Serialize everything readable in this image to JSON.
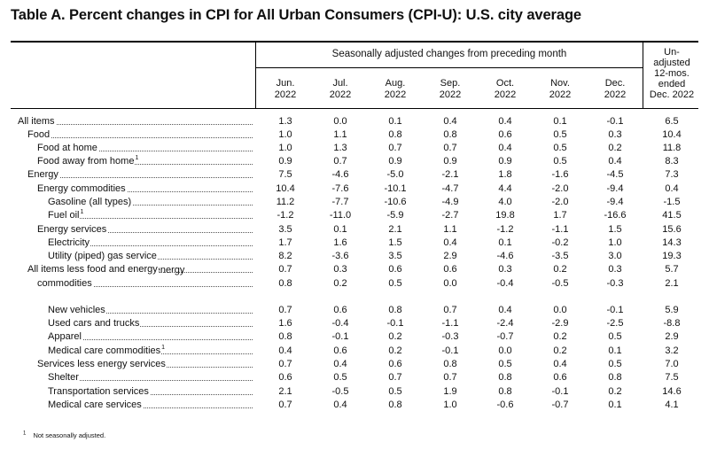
{
  "title": "Table A. Percent changes in CPI for All Urban Consumers (CPI-U): U.S. city average",
  "header": {
    "span_label": "Seasonally adjusted changes from preceding month",
    "months": [
      {
        "m": "Jun.",
        "y": "2022"
      },
      {
        "m": "Jul.",
        "y": "2022"
      },
      {
        "m": "Aug.",
        "y": "2022"
      },
      {
        "m": "Sep.",
        "y": "2022"
      },
      {
        "m": "Oct.",
        "y": "2022"
      },
      {
        "m": "Nov.",
        "y": "2022"
      },
      {
        "m": "Dec.",
        "y": "2022"
      }
    ],
    "unadjusted": [
      "Un-",
      "adjusted",
      "12-mos.",
      "ended",
      "Dec. 2022"
    ]
  },
  "rows": [
    {
      "label": "All items",
      "indent": 0,
      "note": "",
      "values": [
        "1.3",
        "0.0",
        "0.1",
        "0.4",
        "0.4",
        "0.1",
        "-0.1",
        "6.5"
      ]
    },
    {
      "label": "Food",
      "indent": 1,
      "note": "",
      "values": [
        "1.0",
        "1.1",
        "0.8",
        "0.8",
        "0.6",
        "0.5",
        "0.3",
        "10.4"
      ]
    },
    {
      "label": "Food at home",
      "indent": 2,
      "note": "",
      "values": [
        "1.0",
        "1.3",
        "0.7",
        "0.7",
        "0.4",
        "0.5",
        "0.2",
        "11.8"
      ]
    },
    {
      "label": "Food away from home",
      "indent": 2,
      "note": "1",
      "values": [
        "0.9",
        "0.7",
        "0.9",
        "0.9",
        "0.9",
        "0.5",
        "0.4",
        "8.3"
      ]
    },
    {
      "label": "Energy",
      "indent": 1,
      "note": "",
      "values": [
        "7.5",
        "-4.6",
        "-5.0",
        "-2.1",
        "1.8",
        "-1.6",
        "-4.5",
        "7.3"
      ]
    },
    {
      "label": "Energy commodities",
      "indent": 2,
      "note": "",
      "values": [
        "10.4",
        "-7.6",
        "-10.1",
        "-4.7",
        "4.4",
        "-2.0",
        "-9.4",
        "0.4"
      ]
    },
    {
      "label": "Gasoline (all types)",
      "indent": 3,
      "note": "",
      "values": [
        "11.2",
        "-7.7",
        "-10.6",
        "-4.9",
        "4.0",
        "-2.0",
        "-9.4",
        "-1.5"
      ]
    },
    {
      "label": "Fuel oil",
      "indent": 3,
      "note": "1",
      "values": [
        "-1.2",
        "-11.0",
        "-5.9",
        "-2.7",
        "19.8",
        "1.7",
        "-16.6",
        "41.5"
      ]
    },
    {
      "label": "Energy services",
      "indent": 2,
      "note": "",
      "values": [
        "3.5",
        "0.1",
        "2.1",
        "1.1",
        "-1.2",
        "-1.1",
        "1.5",
        "15.6"
      ]
    },
    {
      "label": "Electricity",
      "indent": 3,
      "note": "",
      "values": [
        "1.7",
        "1.6",
        "1.5",
        "0.4",
        "0.1",
        "-0.2",
        "1.0",
        "14.3"
      ]
    },
    {
      "label": "Utility (piped) gas service",
      "indent": 3,
      "note": "",
      "values": [
        "8.2",
        "-3.6",
        "3.5",
        "2.9",
        "-4.6",
        "-3.5",
        "3.0",
        "19.3"
      ]
    },
    {
      "label": "All items less food and energy",
      "indent": 1,
      "note": "",
      "values": [
        "0.7",
        "0.3",
        "0.6",
        "0.6",
        "0.3",
        "0.2",
        "0.3",
        "5.7"
      ]
    },
    {
      "label": "Commodities less food and energy",
      "label2": "commodities",
      "indent": 2,
      "note": "",
      "values": [
        "0.8",
        "0.2",
        "0.5",
        "0.0",
        "-0.4",
        "-0.5",
        "-0.3",
        "2.1"
      ]
    },
    {
      "label": "New vehicles",
      "indent": 3,
      "note": "",
      "values": [
        "0.7",
        "0.6",
        "0.8",
        "0.7",
        "0.4",
        "0.0",
        "-0.1",
        "5.9"
      ]
    },
    {
      "label": "Used cars and trucks",
      "indent": 3,
      "note": "",
      "values": [
        "1.6",
        "-0.4",
        "-0.1",
        "-1.1",
        "-2.4",
        "-2.9",
        "-2.5",
        "-8.8"
      ]
    },
    {
      "label": "Apparel",
      "indent": 3,
      "note": "",
      "values": [
        "0.8",
        "-0.1",
        "0.2",
        "-0.3",
        "-0.7",
        "0.2",
        "0.5",
        "2.9"
      ]
    },
    {
      "label": "Medical care commodities",
      "indent": 3,
      "note": "1",
      "values": [
        "0.4",
        "0.6",
        "0.2",
        "-0.1",
        "0.0",
        "0.2",
        "0.1",
        "3.2"
      ]
    },
    {
      "label": "Services less energy services",
      "indent": 2,
      "note": "",
      "values": [
        "0.7",
        "0.4",
        "0.6",
        "0.8",
        "0.5",
        "0.4",
        "0.5",
        "7.0"
      ]
    },
    {
      "label": "Shelter",
      "indent": 3,
      "note": "",
      "values": [
        "0.6",
        "0.5",
        "0.7",
        "0.7",
        "0.8",
        "0.6",
        "0.8",
        "7.5"
      ]
    },
    {
      "label": "Transportation services",
      "indent": 3,
      "note": "",
      "values": [
        "2.1",
        "-0.5",
        "0.5",
        "1.9",
        "0.8",
        "-0.1",
        "0.2",
        "14.6"
      ]
    },
    {
      "label": "Medical care services",
      "indent": 3,
      "note": "",
      "values": [
        "0.7",
        "0.4",
        "0.8",
        "1.0",
        "-0.6",
        "-0.7",
        "0.1",
        "4.1"
      ]
    }
  ],
  "footnote": {
    "mark": "1",
    "text": "Not seasonally adjusted."
  }
}
